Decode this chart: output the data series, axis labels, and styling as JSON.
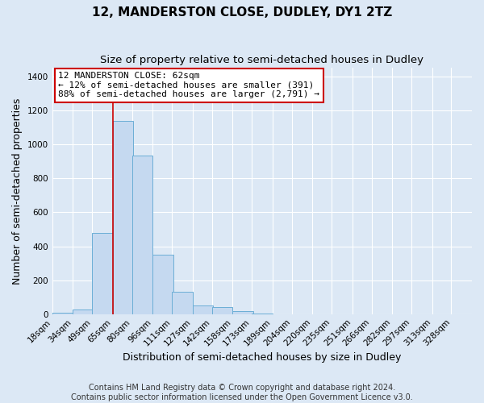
{
  "title": "12, MANDERSTON CLOSE, DUDLEY, DY1 2TZ",
  "subtitle": "Size of property relative to semi-detached houses in Dudley",
  "xlabel": "Distribution of semi-detached houses by size in Dudley",
  "ylabel": "Number of semi-detached properties",
  "bin_labels": [
    "18sqm",
    "34sqm",
    "49sqm",
    "65sqm",
    "80sqm",
    "96sqm",
    "111sqm",
    "127sqm",
    "142sqm",
    "158sqm",
    "173sqm",
    "189sqm",
    "204sqm",
    "220sqm",
    "235sqm",
    "251sqm",
    "266sqm",
    "282sqm",
    "297sqm",
    "313sqm",
    "328sqm"
  ],
  "bin_left_edges": [
    18,
    34,
    49,
    65,
    80,
    96,
    111,
    127,
    142,
    158,
    173,
    189,
    204,
    220,
    235,
    251,
    266,
    282,
    297,
    313,
    328
  ],
  "bin_width": 16,
  "bar_heights": [
    8,
    25,
    480,
    1140,
    935,
    350,
    130,
    50,
    40,
    20,
    3,
    1,
    0,
    0,
    0,
    0,
    0,
    0,
    0,
    0,
    0
  ],
  "bar_color": "#c5d9f0",
  "bar_edge_color": "#6baed6",
  "vline_x": 65,
  "vline_color": "#cc0000",
  "ylim": [
    0,
    1450
  ],
  "xlim_left": 18,
  "xlim_right": 344,
  "yticks": [
    0,
    200,
    400,
    600,
    800,
    1000,
    1200,
    1400
  ],
  "annotation_text_line1": "12 MANDERSTON CLOSE: 62sqm",
  "annotation_text_line2": "← 12% of semi-detached houses are smaller (391)",
  "annotation_text_line3": "88% of semi-detached houses are larger (2,791) →",
  "annotation_box_color": "white",
  "annotation_box_edgecolor": "#cc0000",
  "footer_line1": "Contains HM Land Registry data © Crown copyright and database right 2024.",
  "footer_line2": "Contains public sector information licensed under the Open Government Licence v3.0.",
  "background_color": "#dce8f5",
  "axes_background_color": "#dce8f5",
  "grid_color": "#ffffff",
  "title_fontsize": 11,
  "subtitle_fontsize": 9.5,
  "label_fontsize": 9,
  "tick_fontsize": 7.5,
  "annot_fontsize": 8,
  "footer_fontsize": 7
}
